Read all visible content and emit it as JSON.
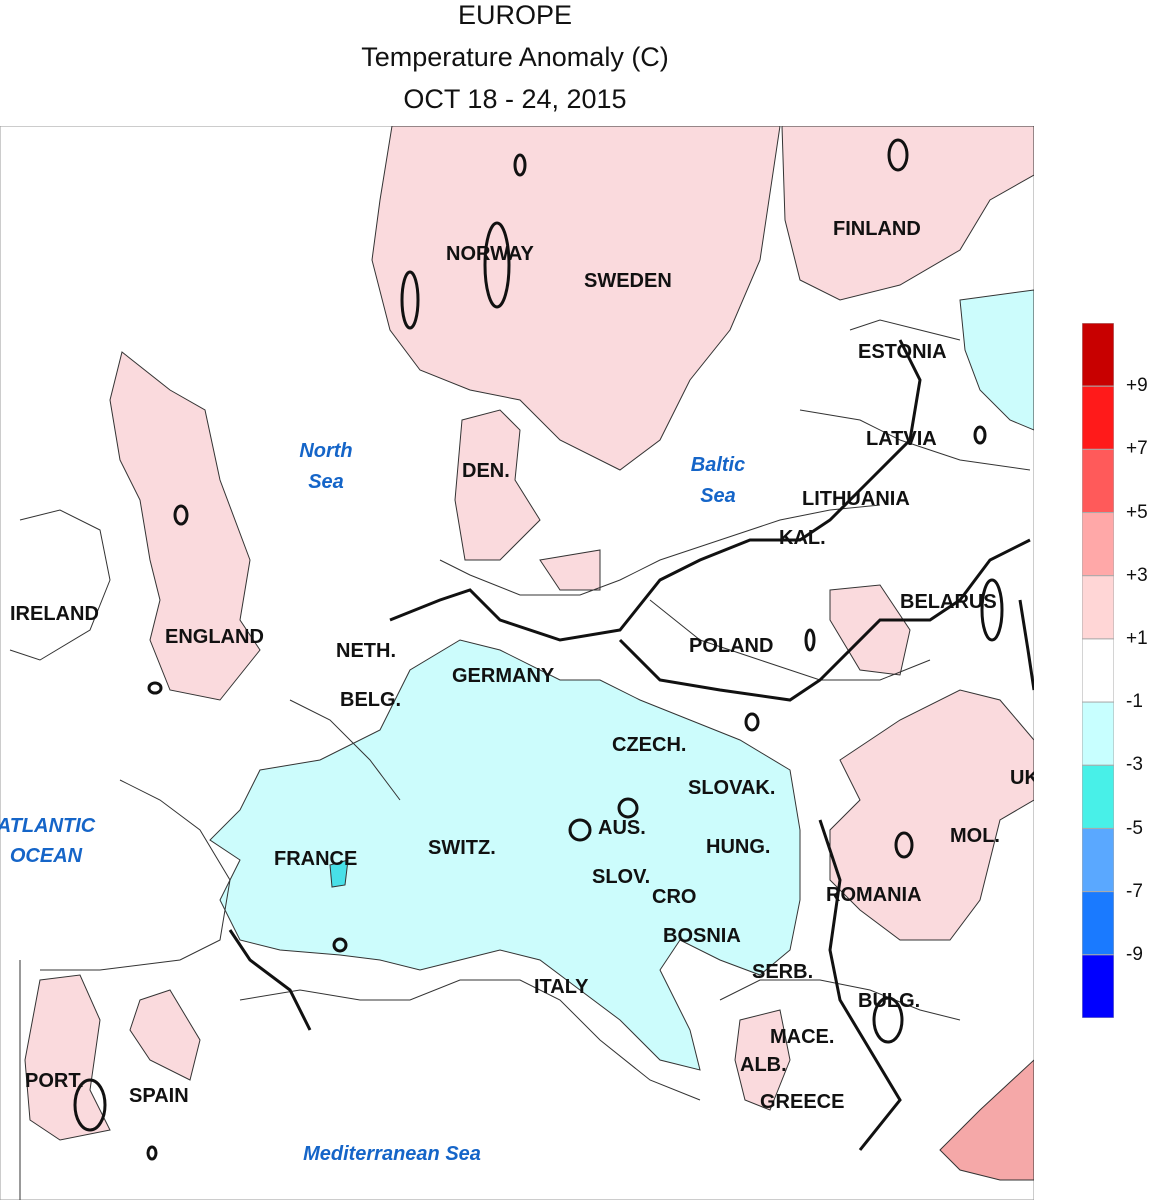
{
  "title": {
    "line1": "EUROPE",
    "line2": "Temperature Anomaly (C)",
    "line3": "OCT 18 - 24, 2015"
  },
  "countries": {
    "norway": "NORWAY",
    "sweden": "SWEDEN",
    "finland": "FINLAND",
    "estonia": "ESTONIA",
    "latvia": "LATVIA",
    "lithuania": "LITHUANIA",
    "kal": "KAL.",
    "belarus": "BELARUS",
    "den": "DEN.",
    "ireland": "IRELAND",
    "england": "ENGLAND",
    "neth": "NETH.",
    "belg": "BELG.",
    "germany": "GERMANY",
    "poland": "POLAND",
    "czech": "CZECH.",
    "slovak": "SLOVAK.",
    "uk": "UK",
    "mol": "MOL.",
    "aus": "AUS.",
    "hung": "HUNG.",
    "france": "FRANCE",
    "switz": "SWITZ.",
    "slov": "SLOV.",
    "cro": "CRO",
    "romania": "ROMANIA",
    "bosnia": "BOSNIA",
    "serb": "SERB.",
    "italy": "ITALY",
    "bulg": "BULG.",
    "mace": "MACE.",
    "alb": "ALB.",
    "greece": "GREECE",
    "port": "PORT.",
    "spain": "SPAIN"
  },
  "seas": {
    "north_1": "North",
    "north_2": "Sea",
    "baltic_1": "Baltic",
    "baltic_2": "Sea",
    "atlantic_1": "ATLANTIC",
    "atlantic_2": "OCEAN",
    "med": "Mediterranean Sea"
  },
  "legend": {
    "labels": [
      "+9",
      "+7",
      "+5",
      "+3",
      "+1",
      "-1",
      "-3",
      "-5",
      "-7",
      "-9"
    ],
    "colors": [
      "#c80000",
      "#ff1a1a",
      "#ff5a5a",
      "#ffa8a8",
      "#ffd6d6",
      "#ffffff",
      "#c8ffff",
      "#48f0e8",
      "#5aa8ff",
      "#1a7aff",
      "#0000ff"
    ]
  },
  "fills": {
    "warm_light": "#fadadd",
    "warm_mid": "#f5a8a8",
    "cool_light": "#ccfcfc",
    "cool_mid": "#48e0e8"
  }
}
